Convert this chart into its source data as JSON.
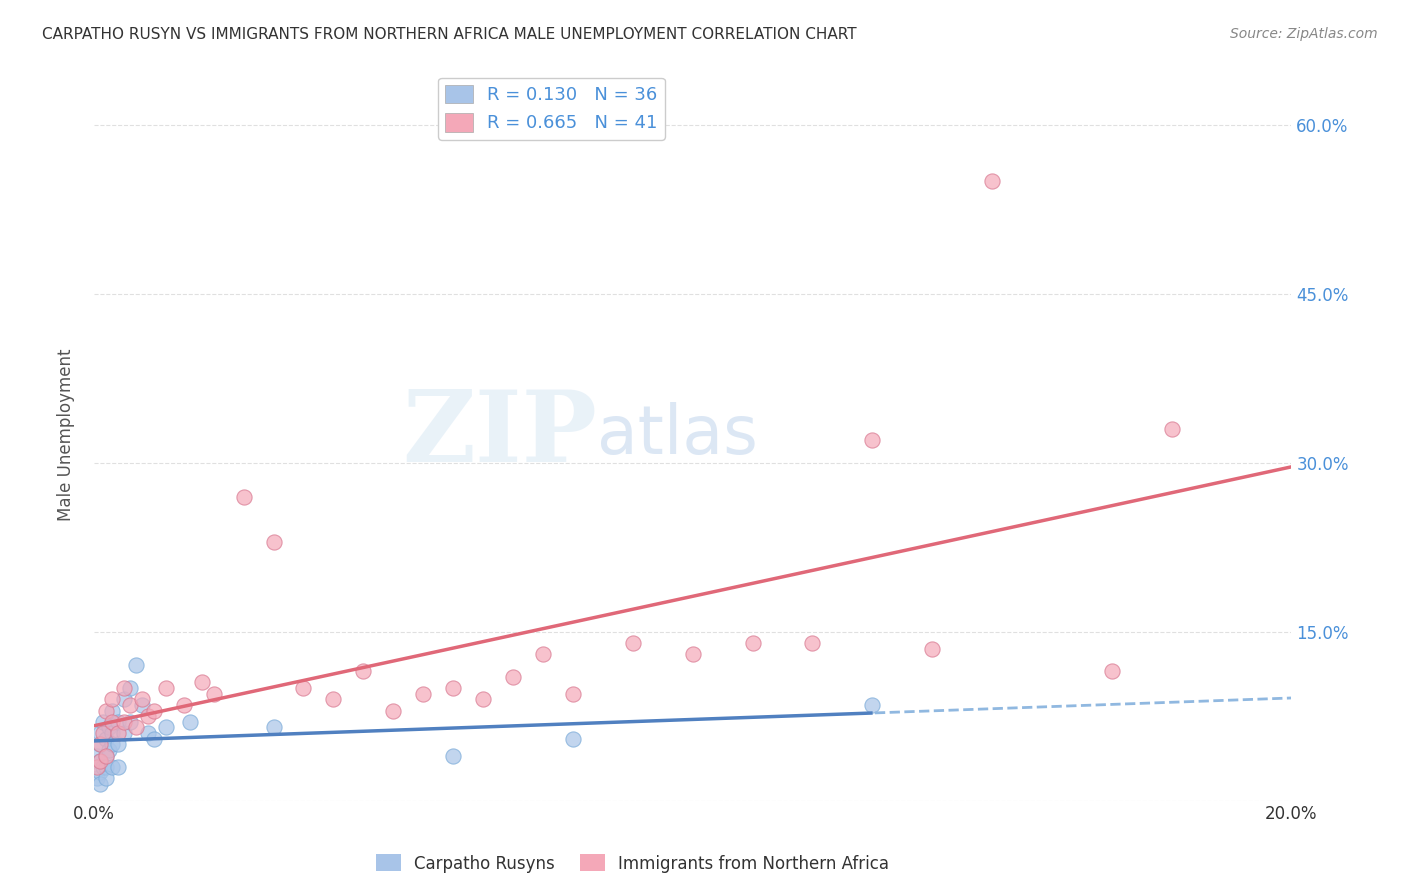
{
  "title": "CARPATHO RUSYN VS IMMIGRANTS FROM NORTHERN AFRICA MALE UNEMPLOYMENT CORRELATION CHART",
  "source": "Source: ZipAtlas.com",
  "ylabel": "Male Unemployment",
  "xlim": [
    0.0,
    0.2
  ],
  "ylim": [
    0.0,
    0.65
  ],
  "yticks_right": [
    0.0,
    0.15,
    0.3,
    0.45,
    0.6
  ],
  "ytick_labels_right": [
    "",
    "15.0%",
    "30.0%",
    "45.0%",
    "60.0%"
  ],
  "xticks": [
    0.0,
    0.05,
    0.1,
    0.15,
    0.2
  ],
  "xtick_labels": [
    "0.0%",
    "",
    "",
    "",
    "20.0%"
  ],
  "watermark_ZIP": "ZIP",
  "watermark_atlas": "atlas",
  "legend_R1": "R = 0.130",
  "legend_N1": "N = 36",
  "legend_R2": "R = 0.665",
  "legend_N2": "N = 41",
  "color_blue": "#a8c4e8",
  "color_pink": "#f4a8b8",
  "color_line_blue_solid": "#5080c0",
  "color_line_blue_dash": "#90b8e0",
  "color_line_pink": "#e06878",
  "color_label_blue": "#4a90d9",
  "color_grid": "#cccccc",
  "carpatho_x": [
    0.0005,
    0.0005,
    0.001,
    0.001,
    0.001,
    0.001,
    0.001,
    0.0015,
    0.0015,
    0.002,
    0.002,
    0.002,
    0.002,
    0.0025,
    0.0025,
    0.003,
    0.003,
    0.003,
    0.003,
    0.004,
    0.004,
    0.004,
    0.005,
    0.005,
    0.006,
    0.006,
    0.007,
    0.008,
    0.009,
    0.01,
    0.012,
    0.016,
    0.03,
    0.06,
    0.08,
    0.13
  ],
  "carpatho_y": [
    0.04,
    0.02,
    0.06,
    0.05,
    0.035,
    0.025,
    0.015,
    0.07,
    0.03,
    0.055,
    0.04,
    0.03,
    0.02,
    0.065,
    0.045,
    0.08,
    0.06,
    0.05,
    0.03,
    0.07,
    0.05,
    0.03,
    0.09,
    0.06,
    0.1,
    0.07,
    0.12,
    0.085,
    0.06,
    0.055,
    0.065,
    0.07,
    0.065,
    0.04,
    0.055,
    0.085
  ],
  "africa_x": [
    0.0005,
    0.001,
    0.001,
    0.0015,
    0.002,
    0.002,
    0.003,
    0.003,
    0.004,
    0.005,
    0.005,
    0.006,
    0.007,
    0.008,
    0.009,
    0.01,
    0.012,
    0.015,
    0.018,
    0.02,
    0.025,
    0.03,
    0.035,
    0.04,
    0.045,
    0.05,
    0.055,
    0.06,
    0.065,
    0.07,
    0.075,
    0.08,
    0.09,
    0.1,
    0.11,
    0.12,
    0.13,
    0.14,
    0.15,
    0.17,
    0.18
  ],
  "africa_y": [
    0.03,
    0.05,
    0.035,
    0.06,
    0.08,
    0.04,
    0.07,
    0.09,
    0.06,
    0.1,
    0.07,
    0.085,
    0.065,
    0.09,
    0.075,
    0.08,
    0.1,
    0.085,
    0.105,
    0.095,
    0.27,
    0.23,
    0.1,
    0.09,
    0.115,
    0.08,
    0.095,
    0.1,
    0.09,
    0.11,
    0.13,
    0.095,
    0.14,
    0.13,
    0.14,
    0.14,
    0.32,
    0.135,
    0.55,
    0.115,
    0.33
  ]
}
